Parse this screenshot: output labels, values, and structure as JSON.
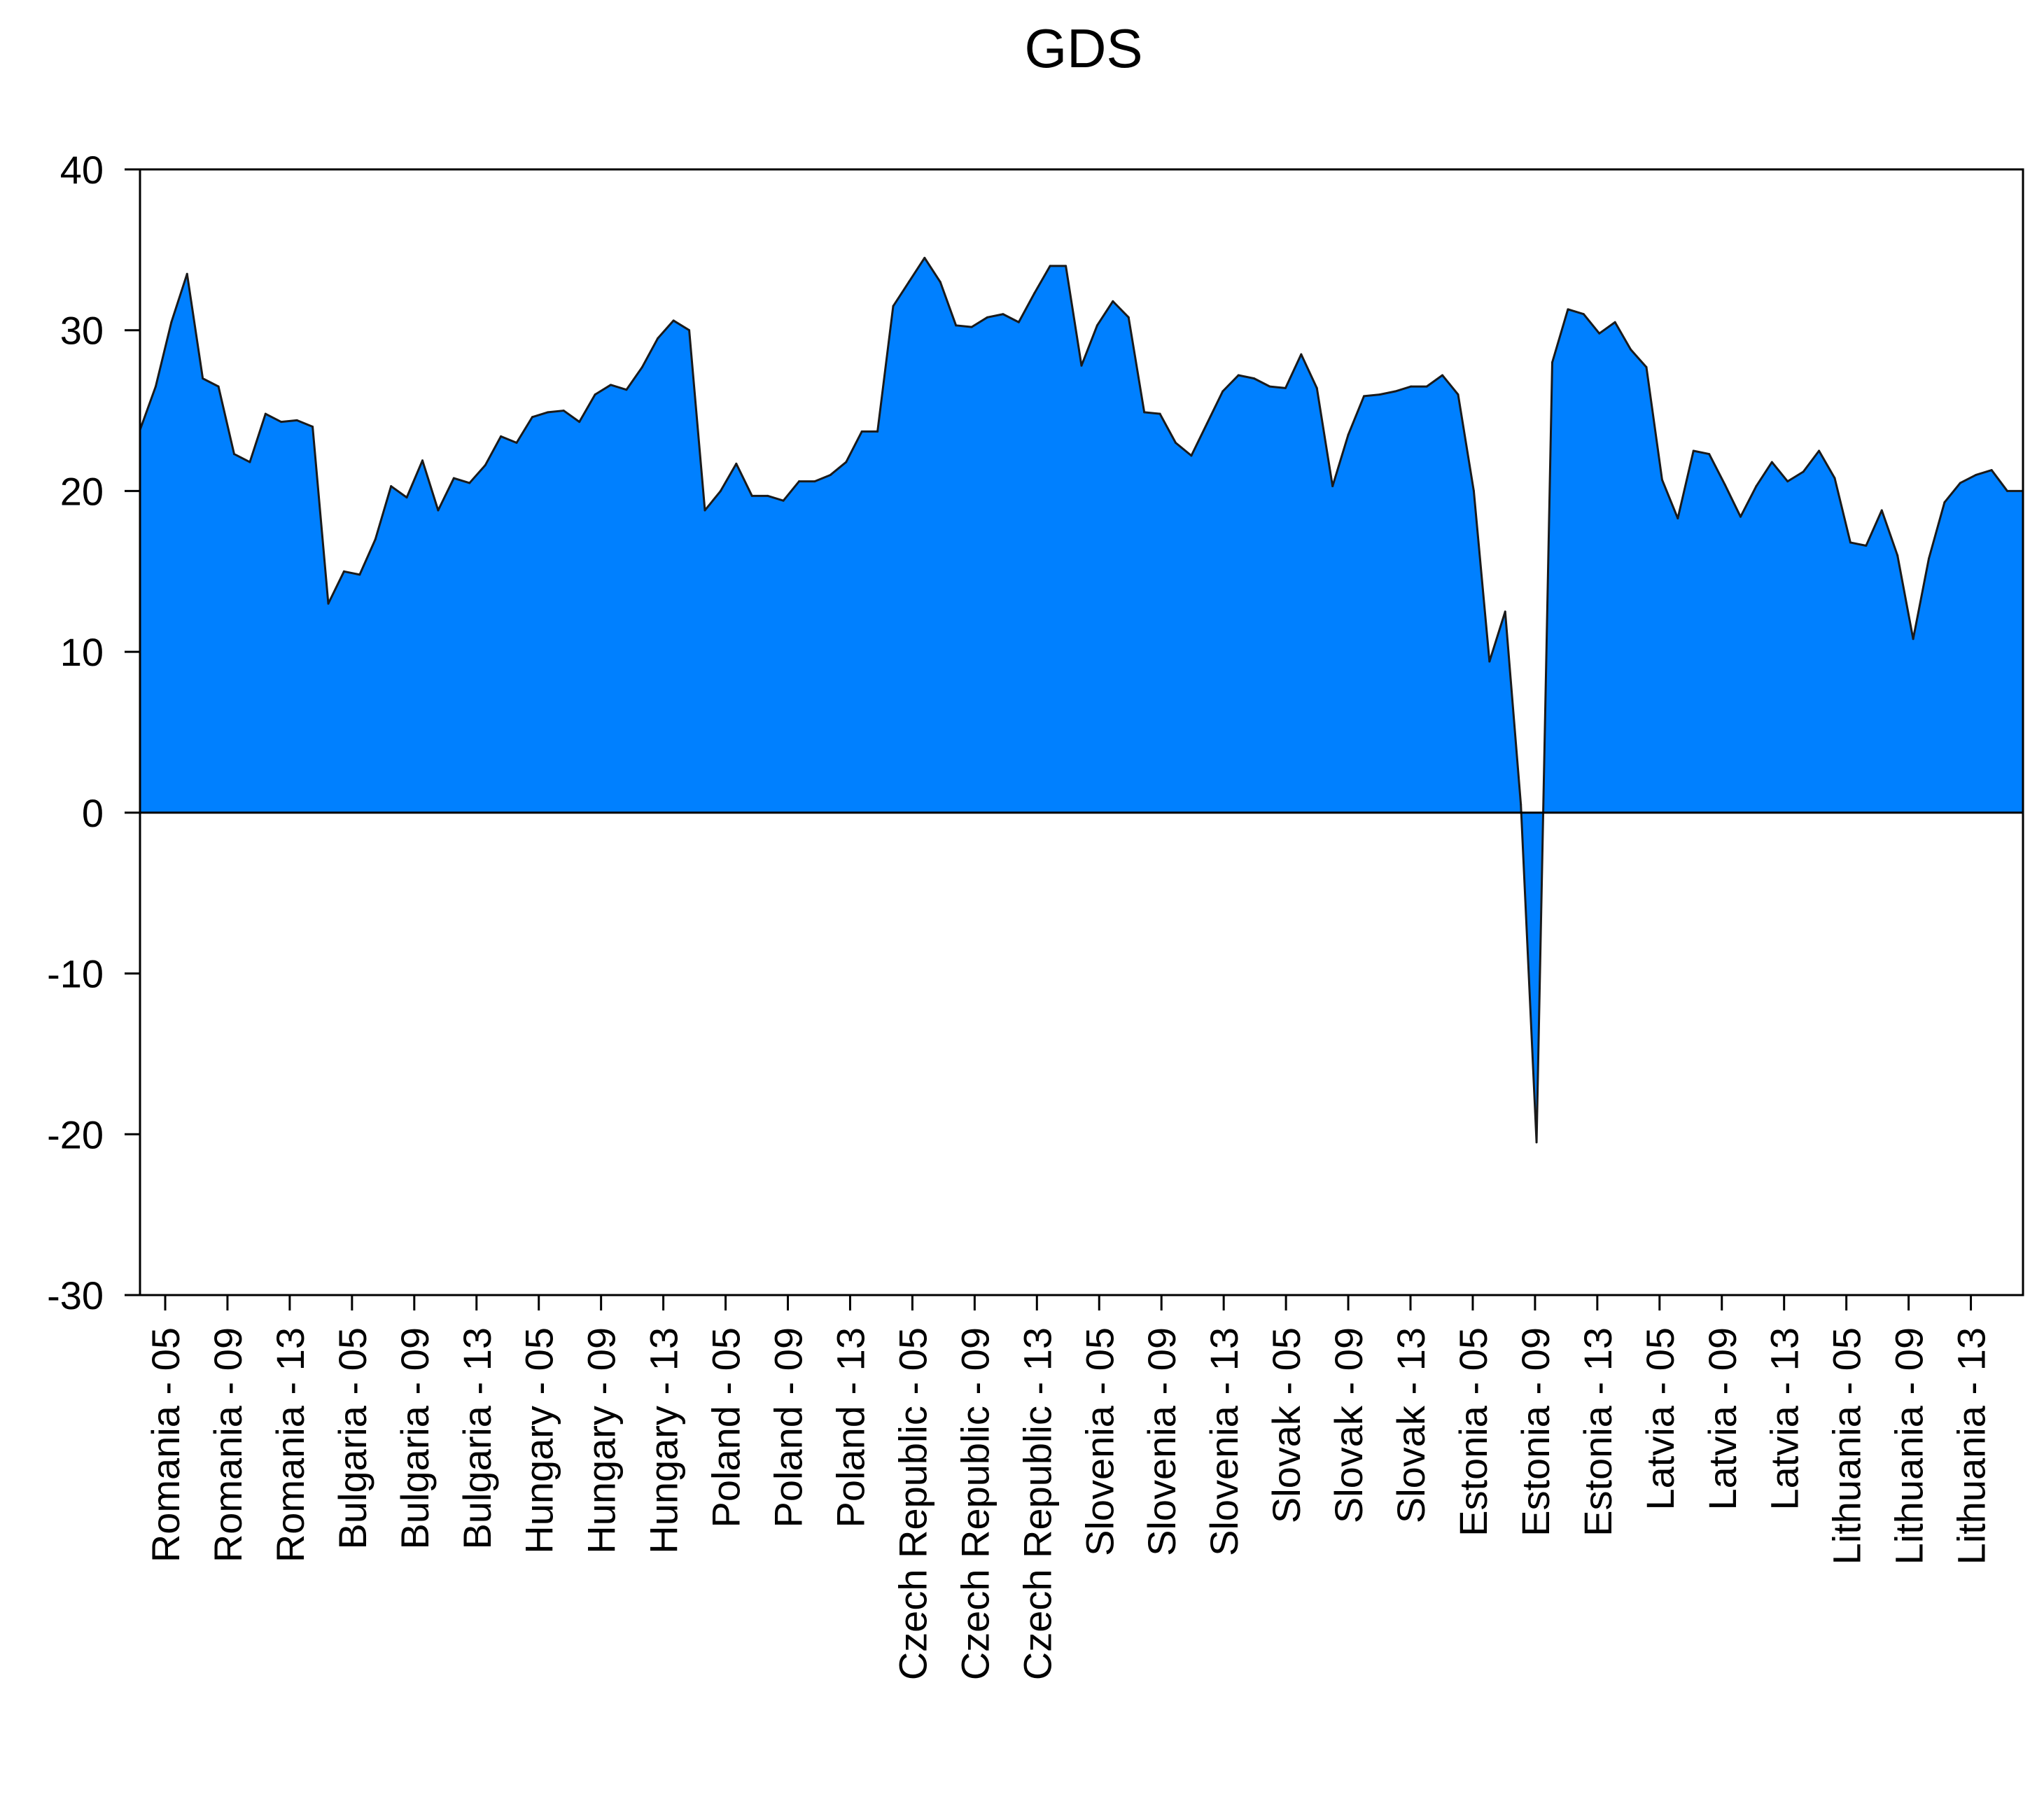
{
  "chart_data": {
    "type": "area",
    "title": "GDS",
    "xlabel": "",
    "ylabel": "",
    "ylim": [
      -30,
      40
    ],
    "y_ticks": [
      40,
      30,
      20,
      10,
      0,
      -10,
      -20,
      -30
    ],
    "grid": false,
    "legend": "none",
    "fill_color": "#0080ff",
    "line_color": "#1a1a1a",
    "zero_line": true,
    "x_tick_labels": [
      "Romania - 05",
      "Romania - 09",
      "Romania - 13",
      "Bulgaria - 05",
      "Bulgaria - 09",
      "Bulgaria - 13",
      "Hungary - 05",
      "Hungary - 09",
      "Hungary - 13",
      "Poland - 05",
      "Poland - 09",
      "Poland - 13",
      "Czech Republic - 05",
      "Czech Republic - 09",
      "Czech Republic - 13",
      "Slovenia - 05",
      "Slovenia - 09",
      "Slovenia - 13",
      "Slovak - 05",
      "Slovak - 09",
      "Slovak - 13",
      "Estonia - 05",
      "Estonia - 09",
      "Estonia - 13",
      "Latvia - 05",
      "Latvia - 09",
      "Latvia - 13",
      "Lithuania - 05",
      "Lithuania - 09",
      "Lithuania - 13"
    ],
    "series": [
      {
        "values": [
          23.8,
          26.5,
          30.5,
          33.5,
          27.0,
          26.5,
          22.3,
          21.8,
          24.8,
          24.3,
          24.4,
          24.0,
          13.0,
          15.0,
          14.8,
          17.0,
          20.3,
          19.6,
          21.9,
          18.8,
          20.8,
          20.5,
          21.6,
          23.4,
          23.0,
          24.6,
          24.9,
          25.0,
          24.3,
          26.0,
          26.6,
          26.3,
          27.7,
          29.5,
          30.6,
          30.0,
          18.8,
          20.0,
          21.7,
          19.7,
          19.7,
          19.4,
          20.6,
          20.6,
          21.0,
          21.8,
          23.7,
          23.7,
          31.5,
          33.0,
          34.5,
          33.0,
          30.3,
          30.2,
          30.8,
          31.0,
          30.5,
          32.3,
          34.0,
          34.0,
          27.8,
          30.3,
          31.8,
          30.8,
          24.9,
          24.8,
          23.0,
          22.2,
          24.2,
          26.2,
          27.2,
          27.0,
          26.5,
          26.4,
          28.5,
          26.4,
          20.3,
          23.5,
          25.9,
          26.0,
          26.2,
          26.5,
          26.5,
          27.2,
          26.0,
          20.0,
          9.4,
          12.5,
          0.5,
          -20.5,
          28.0,
          31.3,
          31.0,
          29.8,
          30.5,
          28.8,
          27.7,
          20.7,
          18.3,
          22.5,
          22.3,
          20.4,
          18.4,
          20.3,
          21.8,
          20.6,
          21.2,
          22.5,
          20.8,
          16.8,
          16.6,
          18.8,
          16.0,
          10.8,
          15.8,
          19.3,
          20.5,
          21.0,
          21.3,
          20.0,
          20.0
        ]
      }
    ]
  }
}
